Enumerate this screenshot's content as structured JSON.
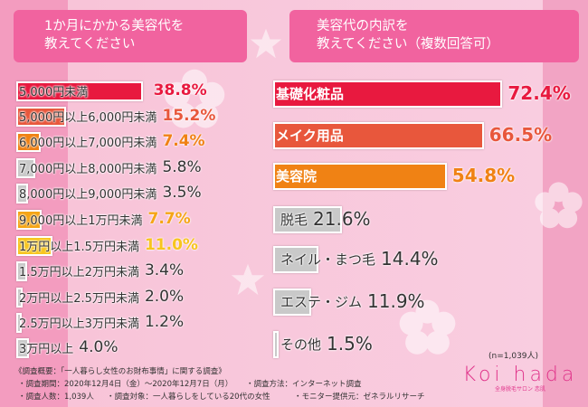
{
  "chart_data": [
    {
      "type": "bar",
      "orientation": "horizontal",
      "title": "1か月にかかる美容代を\n教えてください",
      "title_lines": [
        "1か月にかかる美容代を",
        "教えてください"
      ],
      "categories": [
        "5,000円未満",
        "5,000円以上6,000円未満",
        "6,000円以上7,000円未満",
        "7,000円以上8,000円未満",
        "8,000円以上9,000円未満",
        "9,000円以上1万円未満",
        "1万円以上1.5万円未満",
        "1.5万円以上2万円未満",
        "2万円以上2.5万円未満",
        "2.5万円以上3万円未満",
        "3万円以上"
      ],
      "values": [
        38.8,
        15.2,
        7.4,
        5.8,
        3.5,
        7.7,
        11.0,
        3.4,
        2.0,
        1.2,
        4.0
      ],
      "labels": [
        "38.8%",
        "15.2%",
        "7.4%",
        "5.8%",
        "3.5%",
        "7.7%",
        "11.0%",
        "3.4%",
        "2.0%",
        "1.2%",
        "4.0%"
      ],
      "colors": [
        "#e8193f",
        "#e8573c",
        "#f08214",
        "#c9c9c9",
        "#c9c9c9",
        "#f5a515",
        "#f7c51e",
        "#c9c9c9",
        "#c9c9c9",
        "#c9c9c9",
        "#c9c9c9"
      ],
      "unit": "%"
    },
    {
      "type": "bar",
      "orientation": "horizontal",
      "title_lines": [
        "美容代の内訳を",
        "教えてください（複数回答可）"
      ],
      "categories": [
        "基礎化粧品",
        "メイク用品",
        "美容院",
        "脱毛",
        "ネイル・まつ毛",
        "エステ・ジム",
        "その他"
      ],
      "values": [
        72.4,
        66.5,
        54.8,
        21.6,
        14.4,
        11.9,
        1.5
      ],
      "labels": [
        "72.4%",
        "66.5%",
        "54.8%",
        "21.6%",
        "14.4%",
        "11.9%",
        "1.5%"
      ],
      "colors": [
        "#e8193f",
        "#e8573c",
        "#f08214",
        "#c9c9c9",
        "#c9c9c9",
        "#c9c9c9",
        "#c9c9c9"
      ],
      "unit": "%"
    }
  ],
  "sample": "(n=1,039人)",
  "notes": [
    "《調査概要：「一人暮らし女性のお財布事情」に関する調査》",
    "・調査期間：2020年12月4日（金）～2020年12月7日（月）",
    "・調査方法：インターネット調査",
    "・調査人数：1,039人",
    "・調査対象：一人暮らしをしている20代の女性",
    "・モニター提供元：ゼネラルリサーチ"
  ],
  "logo": {
    "name": "Koi hada",
    "sub": "全身脱毛サロン 恋肌"
  }
}
